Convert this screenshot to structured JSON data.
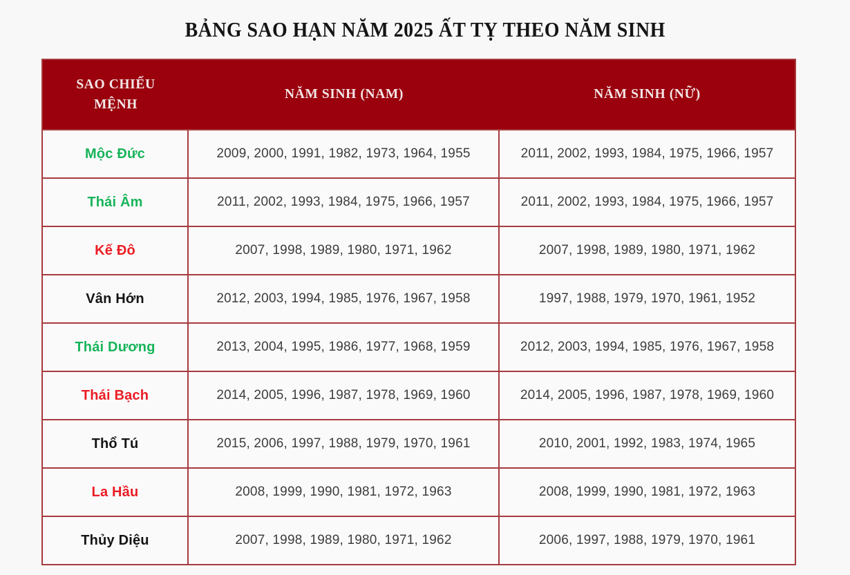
{
  "page": {
    "title": "BẢNG SAO HẠN NĂM 2025 ẤT TỴ THEO NĂM SINH"
  },
  "colors": {
    "page_bg": "#f9f8f8",
    "header_bg": "#9a010d",
    "header_text": "#f4e7e7",
    "border": "#a63a3e",
    "cell_bg": "#fbfafa",
    "year_text": "#3c3c3e",
    "green": "#17b45a",
    "red": "#ec1c24",
    "black": "#141414"
  },
  "table": {
    "columns": [
      "SAO CHIẾU MỆNH",
      "NĂM SINH (NAM)",
      "NĂM SINH (NỮ)"
    ],
    "rows": [
      {
        "star": "Mộc Đức",
        "star_color": "green",
        "nam": "2009, 2000, 1991, 1982, 1973, 1964, 1955",
        "nu": "2011, 2002, 1993, 1984, 1975, 1966, 1957"
      },
      {
        "star": "Thái Âm",
        "star_color": "green",
        "nam": "2011, 2002, 1993, 1984, 1975, 1966, 1957",
        "nu": "2011, 2002, 1993, 1984, 1975, 1966, 1957"
      },
      {
        "star": "Kế Đô",
        "star_color": "red",
        "nam": "2007, 1998, 1989, 1980, 1971, 1962",
        "nu": "2007, 1998, 1989, 1980, 1971, 1962"
      },
      {
        "star": "Vân Hớn",
        "star_color": "black",
        "nam": "2012, 2003, 1994, 1985, 1976, 1967, 1958",
        "nu": "1997, 1988, 1979, 1970, 1961, 1952"
      },
      {
        "star": "Thái Dương",
        "star_color": "green",
        "nam": "2013, 2004, 1995, 1986, 1977, 1968, 1959",
        "nu": "2012, 2003, 1994, 1985, 1976, 1967, 1958"
      },
      {
        "star": "Thái Bạch",
        "star_color": "red",
        "nam": "2014, 2005, 1996, 1987, 1978, 1969, 1960",
        "nu": "2014, 2005, 1996, 1987, 1978, 1969, 1960"
      },
      {
        "star": "Thổ Tú",
        "star_color": "black",
        "nam": "2015, 2006, 1997, 1988, 1979, 1970, 1961",
        "nu": "2010, 2001, 1992, 1983, 1974, 1965"
      },
      {
        "star": "La Hầu",
        "star_color": "red",
        "nam": "2008, 1999, 1990, 1981, 1972, 1963",
        "nu": "2008, 1999, 1990, 1981, 1972, 1963"
      },
      {
        "star": "Thủy Diệu",
        "star_color": "black",
        "nam": "2007, 1998, 1989, 1980, 1971, 1962",
        "nu": "2006, 1997, 1988, 1979, 1970, 1961"
      }
    ]
  }
}
